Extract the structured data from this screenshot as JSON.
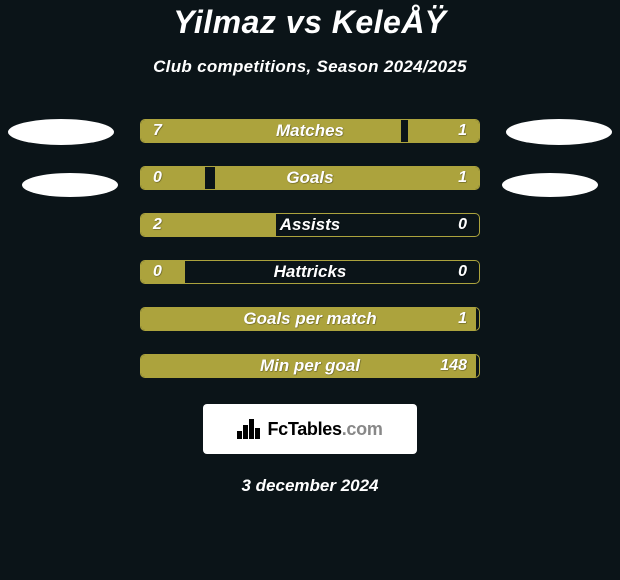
{
  "header": {
    "title": "Yilmaz vs KeleÅŸ",
    "subtitle": "Club competitions, Season 2024/2025"
  },
  "stats": [
    {
      "label": "Matches",
      "left_val": "7",
      "right_val": "1",
      "left_pct": 77,
      "right_pct": 21
    },
    {
      "label": "Goals",
      "left_val": "0",
      "right_val": "1",
      "left_pct": 19,
      "right_pct": 78
    },
    {
      "label": "Assists",
      "left_val": "2",
      "right_val": "0",
      "left_pct": 40,
      "right_pct": 0
    },
    {
      "label": "Hattricks",
      "left_val": "0",
      "right_val": "0",
      "left_pct": 13,
      "right_pct": 0
    },
    {
      "label": "Goals per match",
      "left_val": "",
      "right_val": "1",
      "left_pct": 99,
      "right_pct": 0
    },
    {
      "label": "Min per goal",
      "left_val": "",
      "right_val": "148",
      "left_pct": 99,
      "right_pct": 0
    }
  ],
  "branding": {
    "site_name_main": "FcTables",
    "site_name_suffix": ".com"
  },
  "footer": {
    "date": "3 december 2024"
  },
  "style": {
    "bar_fill": "#aca33d",
    "background": "#0b1418",
    "text": "#ffffff"
  }
}
